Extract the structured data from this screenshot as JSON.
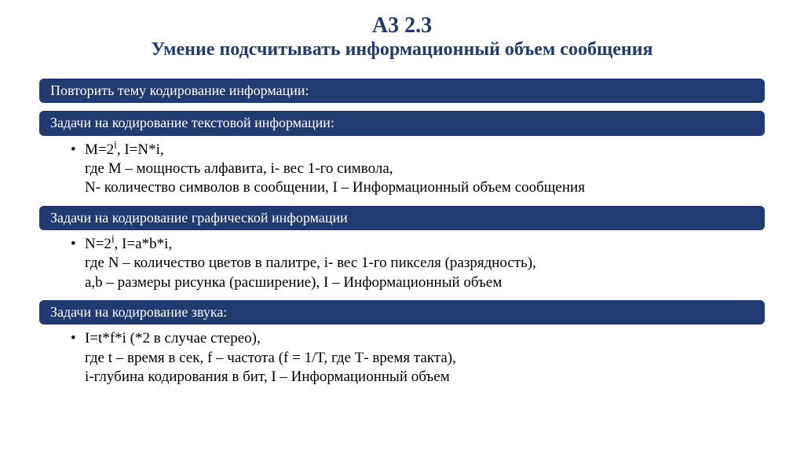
{
  "colors": {
    "bar_bg": "#1f3b70",
    "bar_text": "#ffffff",
    "title_text": "#1f3b70",
    "body_text": "#000000",
    "page_bg": "#ffffff"
  },
  "typography": {
    "title_code_fontsize": 28,
    "title_sub_fontsize": 24,
    "bar_fontsize": 18,
    "body_fontsize": 19,
    "font_family": "Times New Roman"
  },
  "title": {
    "code": "А3 2.3",
    "subtitle": "Умение подсчитывать информационный объем сообщения"
  },
  "sections": [
    {
      "header": "Повторить тему кодирование информации:",
      "body": null
    },
    {
      "header": "Задачи на кодирование текстовой информации:",
      "body": {
        "line1_html": "M=2<sup>i</sup>, I=N*i,",
        "line2": "где M – мощность алфавита, i- вес 1-го символа,",
        "line3": " N- количество символов в сообщении, I – Информационный объем сообщения"
      }
    },
    {
      "header": "Задачи на кодирование графической информации",
      "body": {
        "line1_html": "N=2<sup>i</sup>, I=a*b*i,",
        "line2": "где N – количество цветов в палитре, i- вес 1-го пикселя (разрядность),",
        "line3": " a,b – размеры рисунка (расширение), I – Информационный объем"
      }
    },
    {
      "header": "Задачи на кодирование звука:",
      "body": {
        "line1_html": "I=t*f*i (*2 в случае стерео),",
        "line2": "где t – время в сек, f – частота (f = 1/T, где Т- время такта),",
        "line3": "i-глубина кодирования в бит, I – Информационный объем"
      }
    }
  ],
  "bullet_char": "•"
}
